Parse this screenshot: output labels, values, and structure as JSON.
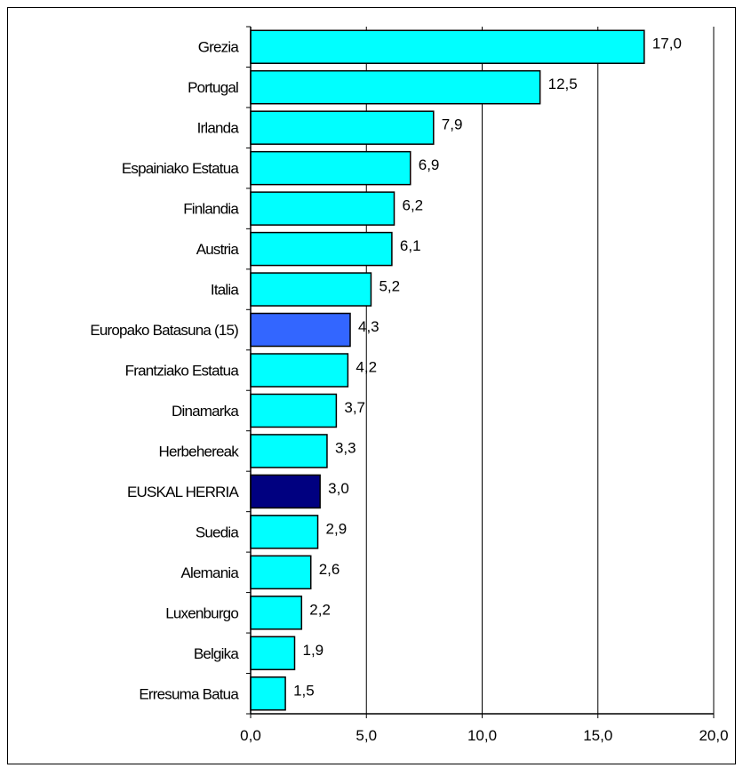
{
  "chart_data": {
    "type": "bar",
    "orientation": "horizontal",
    "categories": [
      "Grezia",
      "Portugal",
      "Irlanda",
      "Espainiako Estatua",
      "Finlandia",
      "Austria",
      "Italia",
      "Europako Batasuna (15)",
      "Frantziako Estatua",
      "Dinamarka",
      "Herbehereak",
      "EUSKAL HERRIA",
      "Suedia",
      "Alemania",
      "Luxenburgo",
      "Belgika",
      "Erresuma Batua"
    ],
    "values": [
      17.0,
      12.5,
      7.9,
      6.9,
      6.2,
      6.1,
      5.2,
      4.3,
      4.2,
      3.7,
      3.3,
      3.0,
      2.9,
      2.6,
      2.2,
      1.9,
      1.5
    ],
    "value_labels": [
      "17,0",
      "12,5",
      "7,9",
      "6,9",
      "6,2",
      "6,1",
      "5,2",
      "4,3",
      "4,2",
      "3,7",
      "3,3",
      "3,0",
      "2,9",
      "2,6",
      "2,2",
      "1,9",
      "1,5"
    ],
    "bar_colors": [
      "#00ffff",
      "#00ffff",
      "#00ffff",
      "#00ffff",
      "#00ffff",
      "#00ffff",
      "#00ffff",
      "#3366ff",
      "#00ffff",
      "#00ffff",
      "#00ffff",
      "#000080",
      "#00ffff",
      "#00ffff",
      "#00ffff",
      "#00ffff",
      "#00ffff"
    ],
    "xlim": [
      0,
      20
    ],
    "x_ticks": [
      0,
      5,
      10,
      15,
      20
    ],
    "x_tick_labels": [
      "0,0",
      "5,0",
      "10,0",
      "15,0",
      "20,0"
    ],
    "grid": true,
    "title": "",
    "xlabel": "",
    "ylabel": ""
  }
}
